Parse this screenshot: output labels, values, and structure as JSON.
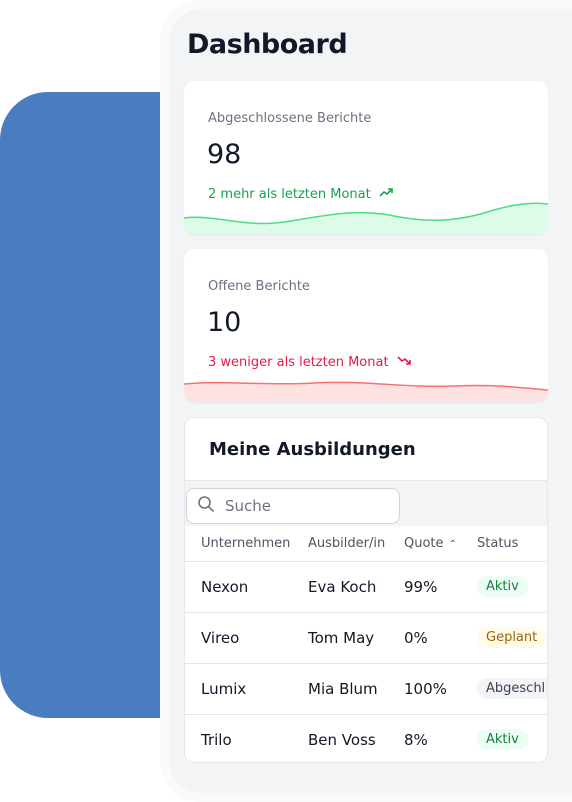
{
  "dashboard": {
    "title": "Dashboard"
  },
  "stats": [
    {
      "label": "Abgeschlossene Berichte",
      "value": "98",
      "delta": "2 mehr als letzten Monat",
      "trend": "up",
      "color": "#16a34a"
    },
    {
      "label": "Offene Berichte",
      "value": "10",
      "delta": "3 weniger als letzten Monat",
      "trend": "down",
      "color": "#e11d48"
    }
  ],
  "trainings": {
    "title": "Meine Ausbildungen",
    "search_placeholder": "Suche",
    "columns": [
      "Unternehmen",
      "Ausbilder/in",
      "Quote",
      "Status"
    ],
    "sorted_column": "Quote",
    "rows": [
      {
        "company": "Nexon",
        "trainer": "Eva Koch",
        "quota": "99%",
        "status": "Aktiv"
      },
      {
        "company": "Vireo",
        "trainer": "Tom May",
        "quota": "0%",
        "status": "Geplant"
      },
      {
        "company": "Lumix",
        "trainer": "Mia Blum",
        "quota": "100%",
        "status": "Abgeschl"
      },
      {
        "company": "Trilo",
        "trainer": "Ben Voss",
        "quota": "8%",
        "status": "Aktiv"
      }
    ]
  },
  "colors": {
    "accent_blue": "#4a7cc0",
    "up": "#16a34a",
    "down": "#e11d48"
  }
}
